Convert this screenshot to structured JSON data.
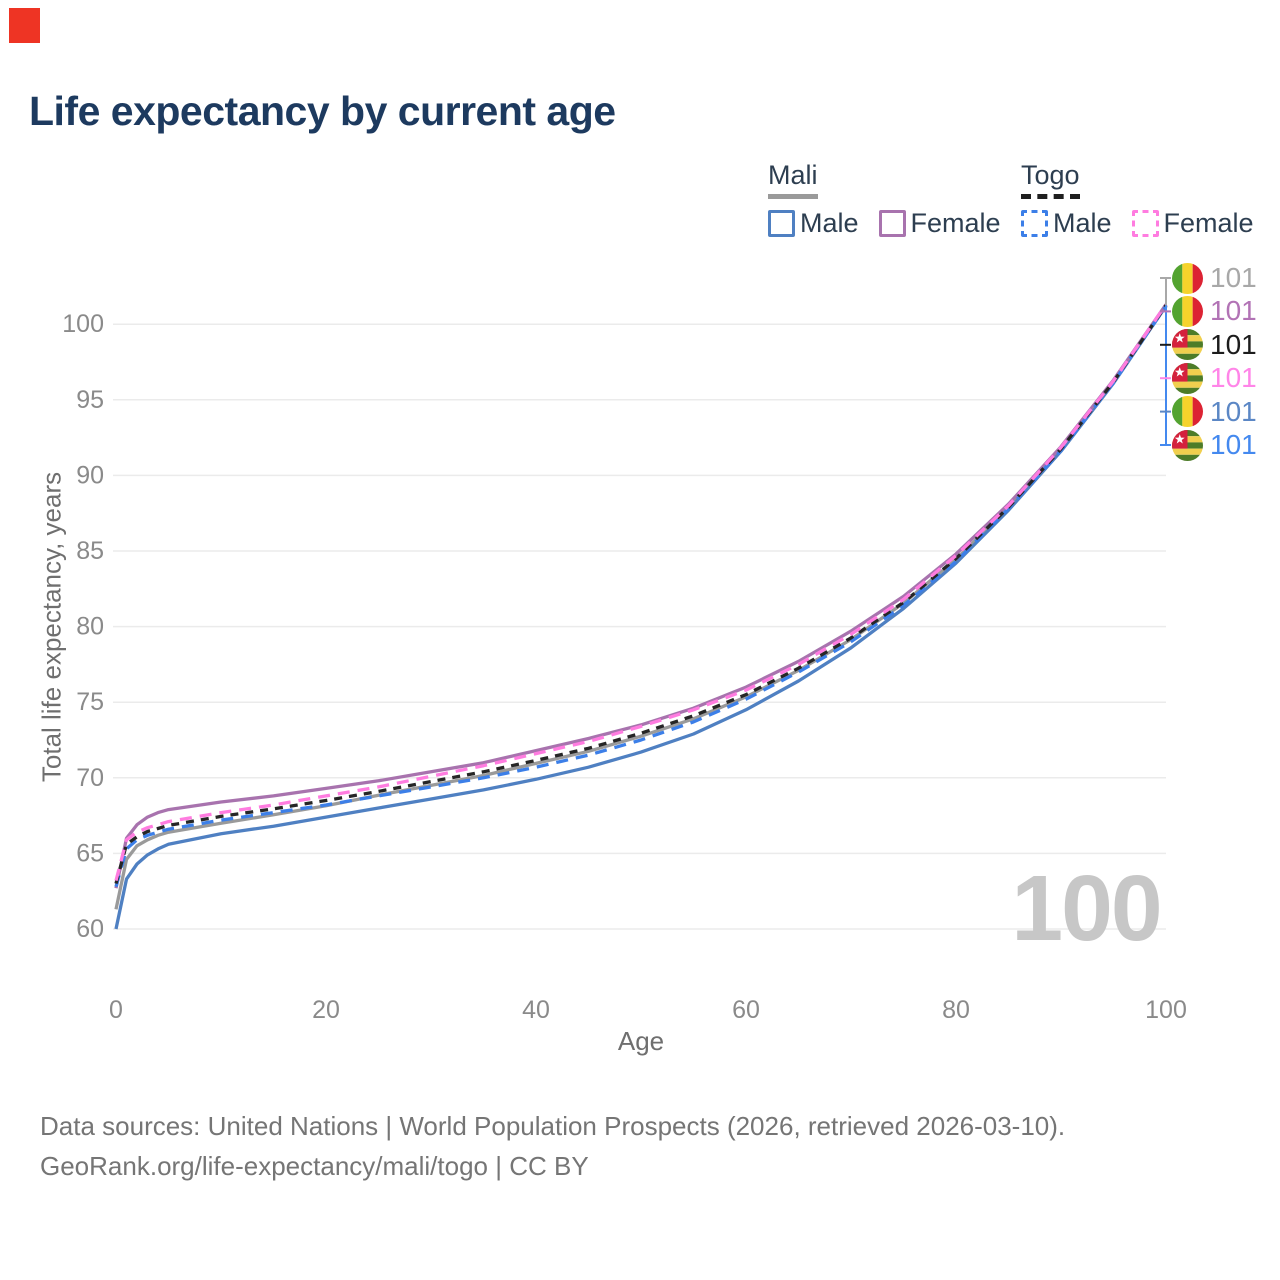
{
  "title": "Life expectancy by current age",
  "watermark": "100",
  "legend": {
    "mali": {
      "title": "Mali",
      "male": "Male",
      "female": "Female"
    },
    "togo": {
      "title": "Togo",
      "male": "Male",
      "female": "Female"
    }
  },
  "footer": {
    "line1": "Data sources: United Nations | World Population Prospects (2026, retrieved 2026-03-10).",
    "line2": "GeoRank.org/life-expectancy/mali/togo | CC BY"
  },
  "colors": {
    "marker": "#ee3424",
    "title_text": "#1d3a5f",
    "legend_text": "#2d3e50",
    "axis_text": "#8a8a8a",
    "grid": "#ebebeb",
    "mali_male": "#4f80c2",
    "mali_female": "#a873ae",
    "mali_all": "#9a9a9a",
    "togo_male": "#3c7fe8",
    "togo_female": "#ff7ce0",
    "togo_all": "#262626",
    "watermark": "#c7c7c7"
  },
  "flags": {
    "mali": {
      "green": "#53a330",
      "yellow": "#f6d32b",
      "red": "#dc2333"
    },
    "togo": {
      "green": "#4d7c28",
      "yellow": "#f0cf4e",
      "red": "#d4213d",
      "star": "#ffffff"
    }
  },
  "chart_data": {
    "type": "line",
    "title": "Life expectancy by current age",
    "xlabel": "Age",
    "ylabel": "Total life expectancy, years",
    "xlim": [
      0,
      100
    ],
    "ylim": [
      60,
      101.5
    ],
    "xticks": [
      0,
      20,
      40,
      60,
      80,
      100
    ],
    "yticks": [
      60,
      65,
      70,
      75,
      80,
      85,
      90,
      95,
      100
    ],
    "grid": "horizontal",
    "legend_position": "top-right",
    "ages": [
      0,
      1,
      2,
      3,
      4,
      5,
      10,
      15,
      20,
      25,
      30,
      35,
      40,
      45,
      50,
      55,
      60,
      65,
      70,
      75,
      80,
      85,
      90,
      95,
      100
    ],
    "series": [
      {
        "name": "Mali All",
        "country": "mali",
        "sex": "all",
        "line": "solid",
        "color": "#9a9a9a",
        "end_label": "101",
        "values": [
          61.3,
          64.6,
          65.5,
          65.9,
          66.2,
          66.4,
          67.0,
          67.55,
          68.15,
          68.85,
          69.5,
          70.15,
          70.95,
          71.75,
          72.75,
          73.9,
          75.35,
          77.1,
          79.15,
          81.55,
          84.45,
          87.85,
          91.7,
          96.18,
          101.25
        ]
      },
      {
        "name": "Mali Male",
        "country": "mali",
        "sex": "male",
        "line": "solid",
        "color": "#4f80c2",
        "end_label": "101",
        "values": [
          60.0,
          63.3,
          64.3,
          64.9,
          65.3,
          65.6,
          66.3,
          66.8,
          67.4,
          68.0,
          68.6,
          69.2,
          69.9,
          70.7,
          71.7,
          72.9,
          74.5,
          76.4,
          78.6,
          81.2,
          84.2,
          87.7,
          91.6,
          96.1,
          101.2
        ]
      },
      {
        "name": "Mali Female",
        "country": "mali",
        "sex": "female",
        "line": "solid",
        "color": "#a873ae",
        "end_label": "101",
        "values": [
          62.7,
          66.0,
          66.9,
          67.4,
          67.7,
          67.9,
          68.4,
          68.8,
          69.3,
          69.8,
          70.4,
          71.0,
          71.8,
          72.6,
          73.5,
          74.6,
          76.0,
          77.7,
          79.7,
          82.0,
          84.8,
          88.1,
          91.9,
          96.3,
          101.3
        ]
      },
      {
        "name": "Togo Male",
        "country": "togo",
        "sex": "male",
        "line": "dashed",
        "color": "#3c7fe8",
        "end_label": "101",
        "values": [
          62.8,
          65.3,
          65.9,
          66.2,
          66.4,
          66.6,
          67.2,
          67.7,
          68.2,
          68.8,
          69.4,
          70.0,
          70.7,
          71.5,
          72.5,
          73.7,
          75.2,
          77.0,
          79.0,
          81.4,
          84.3,
          87.8,
          91.65,
          96.15,
          101.2
        ]
      },
      {
        "name": "Togo All",
        "country": "togo",
        "sex": "all",
        "line": "dashed",
        "color": "#262626",
        "end_label": "101",
        "values": [
          63.0,
          65.6,
          66.1,
          66.45,
          66.65,
          66.85,
          67.45,
          67.95,
          68.5,
          69.1,
          69.75,
          70.4,
          71.15,
          71.95,
          72.95,
          74.1,
          75.5,
          77.25,
          79.25,
          81.6,
          84.5,
          87.9,
          91.75,
          96.2,
          101.25
        ]
      },
      {
        "name": "Togo Female",
        "country": "togo",
        "sex": "female",
        "line": "dashed",
        "color": "#ff7ce0",
        "end_label": "101",
        "values": [
          63.2,
          65.9,
          66.4,
          66.7,
          66.9,
          67.1,
          67.7,
          68.2,
          68.8,
          69.4,
          70.1,
          70.8,
          71.6,
          72.4,
          73.4,
          74.5,
          75.8,
          77.5,
          79.5,
          81.8,
          84.7,
          88.0,
          91.85,
          96.25,
          101.3
        ]
      }
    ],
    "end_labels": [
      {
        "country": "mali",
        "series": "Mali All",
        "text": "101",
        "color": "#a8a8a8"
      },
      {
        "country": "mali",
        "series": "Mali Female",
        "text": "101",
        "color": "#b273b5"
      },
      {
        "country": "togo",
        "series": "Togo All",
        "text": "101",
        "color": "#1c1c1c"
      },
      {
        "country": "togo",
        "series": "Togo Female",
        "text": "101",
        "color": "#ff85e8"
      },
      {
        "country": "mali",
        "series": "Mali Male",
        "text": "101",
        "color": "#5b87c5"
      },
      {
        "country": "togo",
        "series": "Togo Male",
        "text": "101",
        "color": "#4489ef"
      }
    ]
  }
}
